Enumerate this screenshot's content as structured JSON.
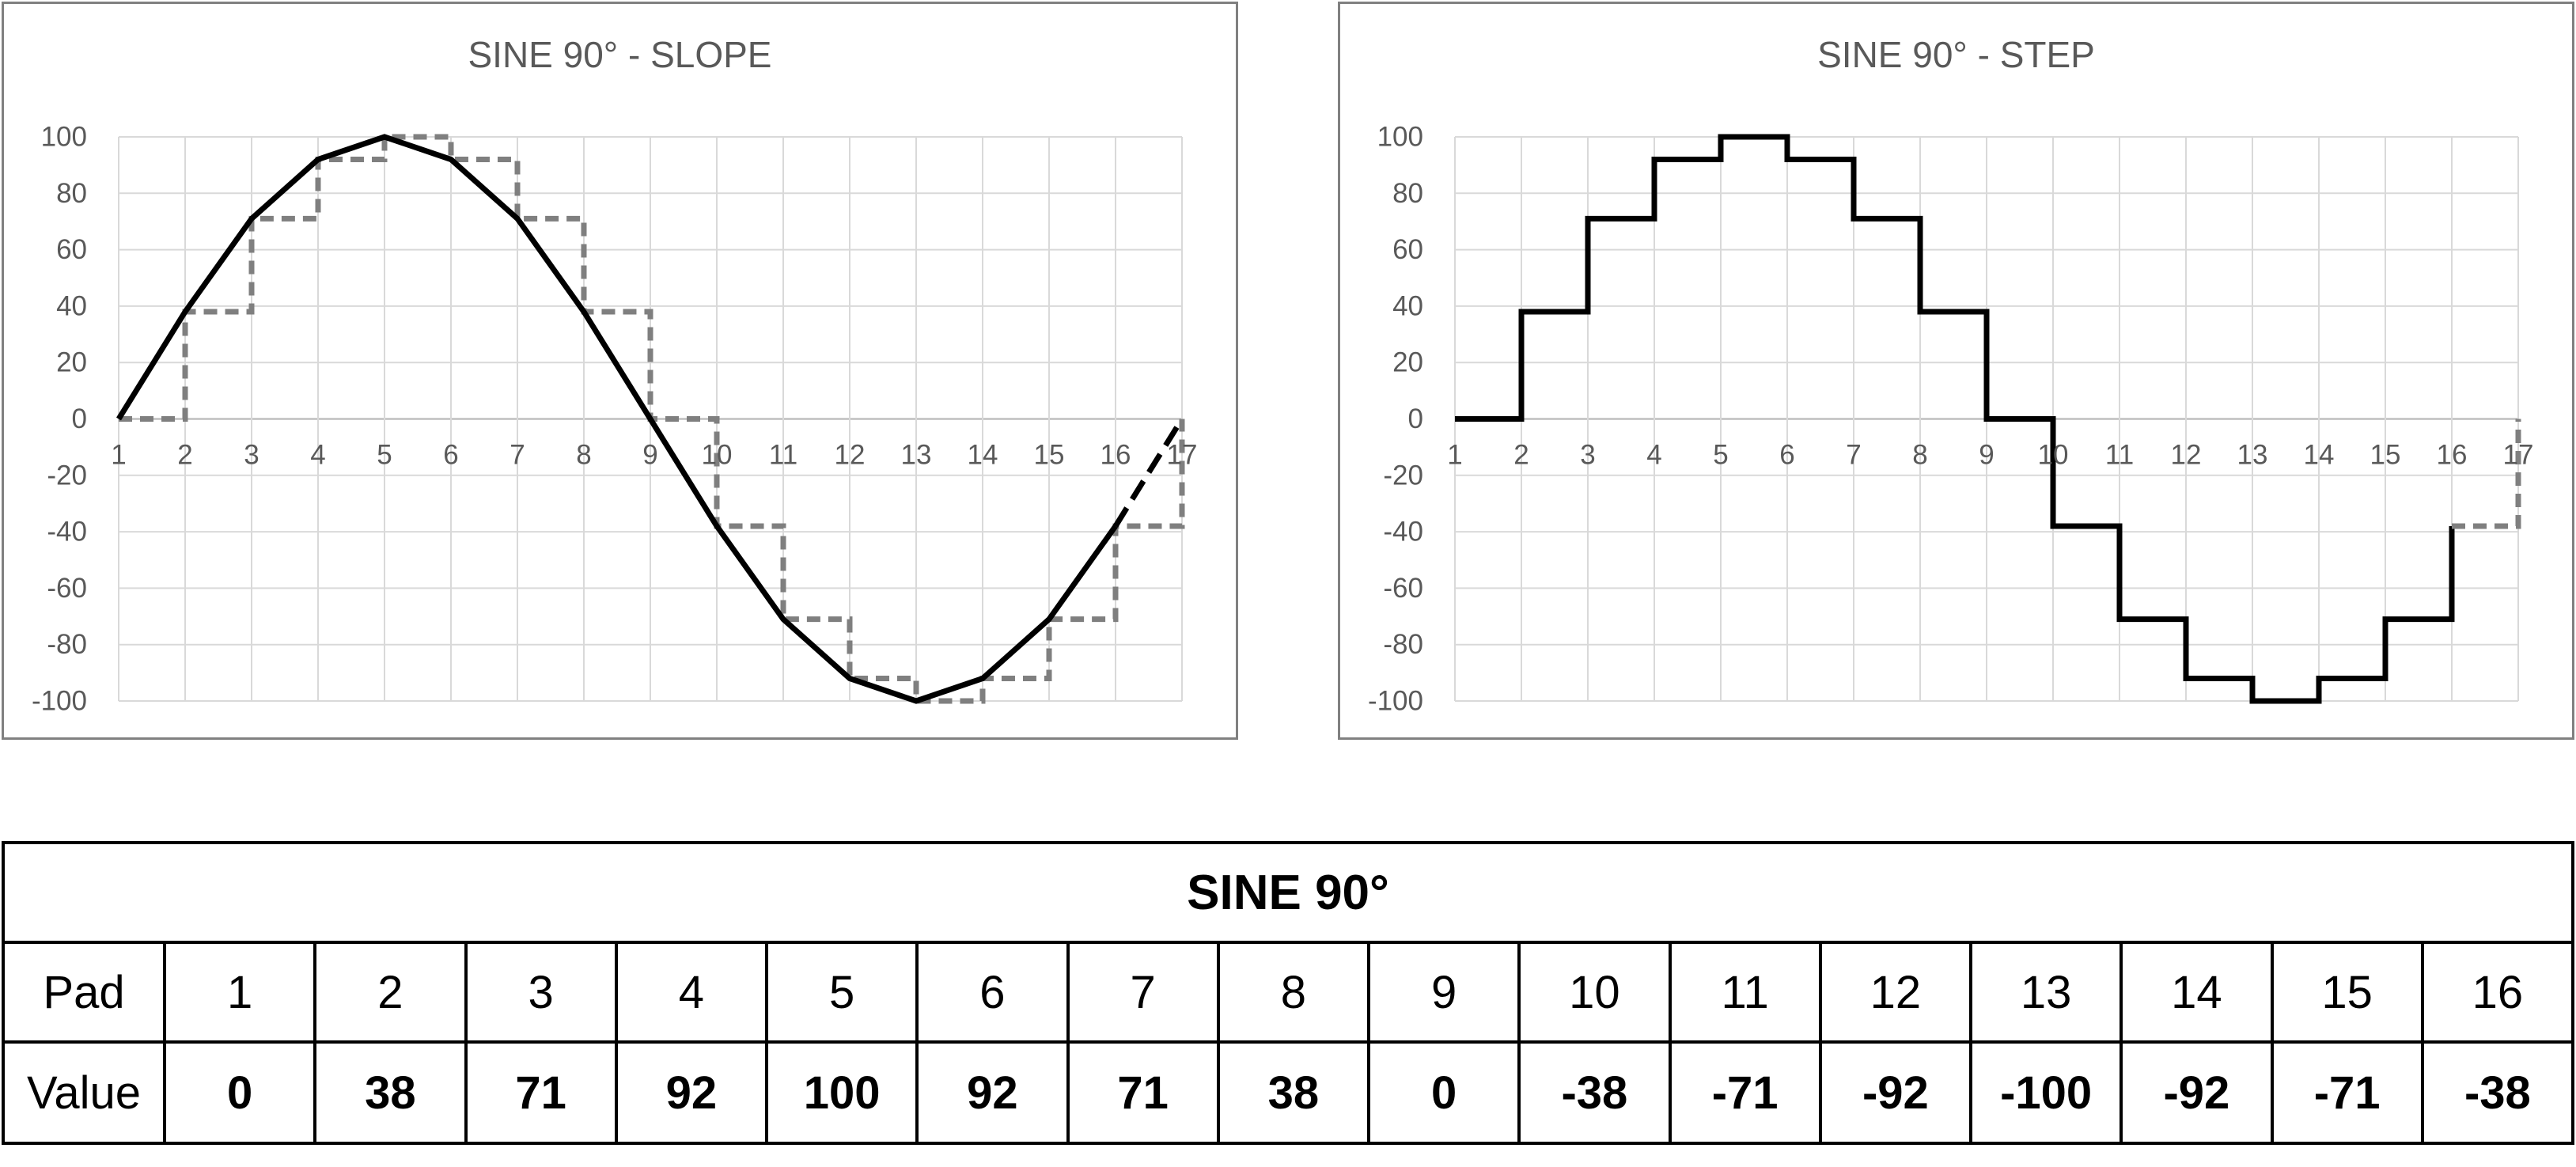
{
  "page": {
    "background": "#FFFFFF"
  },
  "colors": {
    "grid": "#D9D9D9",
    "axis_line": "#BFBFBF",
    "tick_label": "#595959",
    "chart_border": "#808080",
    "series_black": "#000000",
    "series_gray": "#7F7F7F",
    "table_border": "#000000",
    "table_text": "#000000"
  },
  "styles": {
    "solid-black": {
      "color": "#000000",
      "dash": ""
    },
    "dashed-black": {
      "color": "#000000",
      "dash": "27 13"
    },
    "dashed-gray": {
      "color": "#7F7F7F",
      "dash": "17 10"
    }
  },
  "chart_data": [
    {
      "type": "line",
      "title": "SINE 90° - SLOPE",
      "xlabel": "",
      "ylabel": "",
      "xlim": [
        1,
        17
      ],
      "ylim": [
        -100,
        100
      ],
      "grid": true,
      "legend": "none",
      "x_ticks": [
        1,
        2,
        3,
        4,
        5,
        6,
        7,
        8,
        9,
        10,
        11,
        12,
        13,
        14,
        15,
        16,
        17
      ],
      "y_ticks": [
        100,
        80,
        60,
        40,
        20,
        0,
        -20,
        -40,
        -60,
        -80,
        -100
      ],
      "series": [
        {
          "name": "step-overlay",
          "style": "dashed-gray",
          "points": [
            [
              1,
              0
            ],
            [
              2,
              0
            ],
            [
              2,
              38
            ],
            [
              3,
              38
            ],
            [
              3,
              71
            ],
            [
              4,
              71
            ],
            [
              4,
              92
            ],
            [
              5,
              92
            ],
            [
              5,
              100
            ],
            [
              6,
              100
            ],
            [
              6,
              92
            ],
            [
              7,
              92
            ],
            [
              7,
              71
            ],
            [
              8,
              71
            ],
            [
              8,
              38
            ],
            [
              9,
              38
            ],
            [
              9,
              0
            ],
            [
              10,
              0
            ],
            [
              10,
              -38
            ],
            [
              11,
              -38
            ],
            [
              11,
              -71
            ],
            [
              12,
              -71
            ],
            [
              12,
              -92
            ],
            [
              13,
              -92
            ],
            [
              13,
              -100
            ],
            [
              14,
              -100
            ],
            [
              14,
              -92
            ],
            [
              15,
              -92
            ],
            [
              15,
              -71
            ],
            [
              16,
              -71
            ],
            [
              16,
              -38
            ],
            [
              17,
              -38
            ],
            [
              17,
              0
            ]
          ]
        },
        {
          "name": "sine-slope",
          "style": "solid-black",
          "points": [
            [
              1,
              0
            ],
            [
              2,
              38
            ],
            [
              3,
              71
            ],
            [
              4,
              92
            ],
            [
              5,
              100
            ],
            [
              6,
              92
            ],
            [
              7,
              71
            ],
            [
              8,
              38
            ],
            [
              9,
              0
            ],
            [
              10,
              -38
            ],
            [
              11,
              -71
            ],
            [
              12,
              -92
            ],
            [
              13,
              -100
            ],
            [
              14,
              -92
            ],
            [
              15,
              -71
            ],
            [
              16,
              -38
            ]
          ]
        },
        {
          "name": "sine-slope-wrap",
          "style": "dashed-black",
          "points": [
            [
              16,
              -38
            ],
            [
              17,
              0
            ]
          ]
        }
      ]
    },
    {
      "type": "line",
      "title": "SINE 90° - STEP",
      "xlabel": "",
      "ylabel": "",
      "xlim": [
        1,
        17
      ],
      "ylim": [
        -100,
        100
      ],
      "grid": true,
      "legend": "none",
      "x_ticks": [
        1,
        2,
        3,
        4,
        5,
        6,
        7,
        8,
        9,
        10,
        11,
        12,
        13,
        14,
        15,
        16,
        17
      ],
      "y_ticks": [
        100,
        80,
        60,
        40,
        20,
        0,
        -20,
        -40,
        -60,
        -80,
        -100
      ],
      "series": [
        {
          "name": "sine-step",
          "style": "solid-black",
          "points": [
            [
              1,
              0
            ],
            [
              2,
              0
            ],
            [
              2,
              38
            ],
            [
              3,
              38
            ],
            [
              3,
              71
            ],
            [
              4,
              71
            ],
            [
              4,
              92
            ],
            [
              5,
              92
            ],
            [
              5,
              100
            ],
            [
              6,
              100
            ],
            [
              6,
              92
            ],
            [
              7,
              92
            ],
            [
              7,
              71
            ],
            [
              8,
              71
            ],
            [
              8,
              38
            ],
            [
              9,
              38
            ],
            [
              9,
              0
            ],
            [
              10,
              0
            ],
            [
              10,
              -38
            ],
            [
              11,
              -38
            ],
            [
              11,
              -71
            ],
            [
              12,
              -71
            ],
            [
              12,
              -92
            ],
            [
              13,
              -92
            ],
            [
              13,
              -100
            ],
            [
              14,
              -100
            ],
            [
              14,
              -92
            ],
            [
              15,
              -92
            ],
            [
              15,
              -71
            ],
            [
              16,
              -71
            ],
            [
              16,
              -38
            ]
          ]
        },
        {
          "name": "sine-step-wrap",
          "style": "dashed-gray",
          "points": [
            [
              16,
              -38
            ],
            [
              17,
              -38
            ],
            [
              17,
              0
            ]
          ]
        }
      ]
    },
    {
      "type": "table",
      "title": "SINE 90°",
      "row_labels": [
        "Pad",
        "Value"
      ],
      "pads": [
        1,
        2,
        3,
        4,
        5,
        6,
        7,
        8,
        9,
        10,
        11,
        12,
        13,
        14,
        15,
        16
      ],
      "values": [
        0,
        38,
        71,
        92,
        100,
        92,
        71,
        38,
        0,
        -38,
        -71,
        -92,
        -100,
        -92,
        -71,
        -38
      ]
    }
  ]
}
